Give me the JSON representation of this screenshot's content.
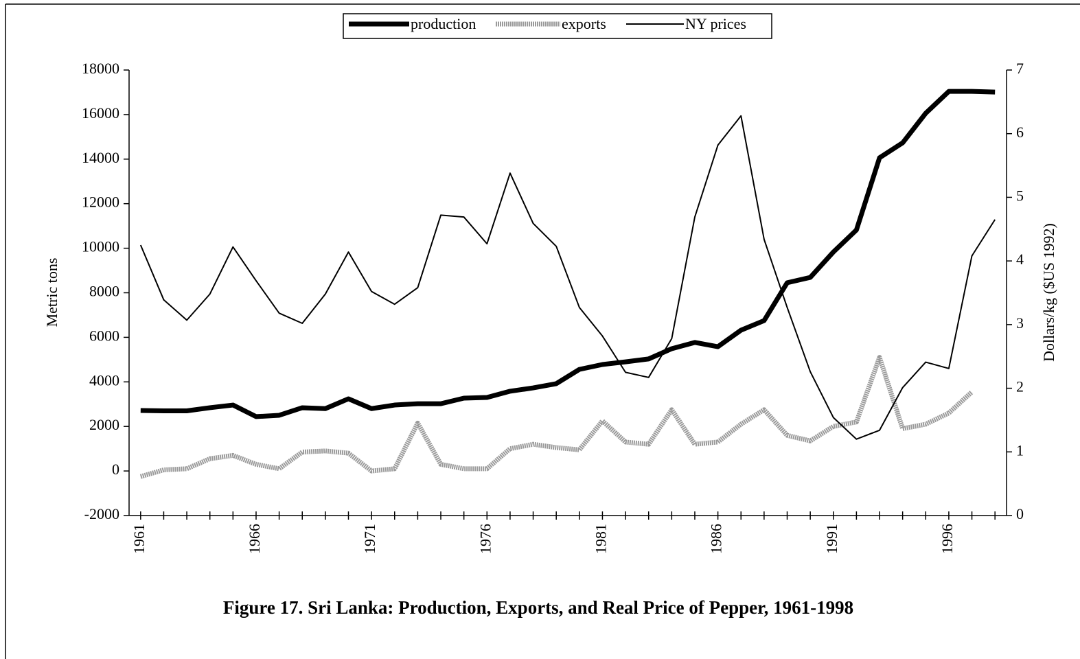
{
  "chart_data": {
    "type": "line",
    "title": "Figure 17. Sri Lanka: Production, Exports, and Real Price of Pepper, 1961-1998",
    "y_label": "Metric tons",
    "y2_label": "Dollars/kg ($US 1992)",
    "categories": [
      "1961",
      null,
      null,
      null,
      null,
      "1966",
      null,
      null,
      null,
      null,
      "1971",
      null,
      null,
      null,
      null,
      "1976",
      null,
      null,
      null,
      null,
      "1981",
      null,
      null,
      null,
      null,
      "1986",
      null,
      null,
      null,
      null,
      "1991",
      null,
      null,
      null,
      null,
      "1996",
      null,
      null
    ],
    "series": [
      {
        "name": "production",
        "color": "#000000",
        "width": 7,
        "values": [
          2715,
          2700,
          2700,
          2840,
          2960,
          2440,
          2500,
          2840,
          2800,
          3240,
          2800,
          2960,
          3020,
          3020,
          3270,
          3300,
          3580,
          3730,
          3920,
          4560,
          4780,
          4900,
          5030,
          5490,
          5770,
          5580,
          6320,
          6750,
          8450,
          8690,
          9830,
          10820,
          14060,
          14730,
          16060,
          17040,
          17040,
          17010
        ]
      },
      {
        "name": "exports",
        "color": "#9a9a9a",
        "width": 7,
        "values": [
          -250,
          50,
          100,
          550,
          700,
          300,
          100,
          850,
          900,
          800,
          0,
          100,
          2150,
          300,
          100,
          100,
          1000,
          1200,
          1050,
          950,
          2250,
          1300,
          1200,
          2750,
          1200,
          1300,
          2100,
          2750,
          1600,
          1350,
          2000,
          2200,
          5100,
          1900,
          2100,
          2600,
          3550,
          null
        ]
      },
      {
        "name": "NY prices",
        "color": "#000000",
        "width": 2,
        "axis": "y2",
        "values": [
          4.25,
          3.39,
          3.07,
          3.48,
          4.22,
          3.69,
          3.18,
          3.02,
          3.48,
          4.14,
          3.52,
          3.32,
          3.58,
          4.72,
          4.69,
          4.27,
          5.38,
          4.59,
          4.23,
          3.27,
          2.82,
          2.25,
          2.17,
          2.78,
          4.69,
          5.82,
          6.28,
          4.34,
          3.27,
          2.26,
          1.54,
          1.2,
          1.34,
          2.01,
          2.41,
          2.31,
          4.08,
          4.65
        ]
      }
    ],
    "ylim": [
      -2000,
      18000
    ],
    "yticks": [
      -2000,
      0,
      2000,
      4000,
      6000,
      8000,
      10000,
      12000,
      14000,
      16000,
      18000
    ],
    "y2lim": [
      0,
      7
    ],
    "y2ticks": [
      0,
      1,
      2,
      3,
      4,
      5,
      6,
      7
    ],
    "legend": "top"
  }
}
